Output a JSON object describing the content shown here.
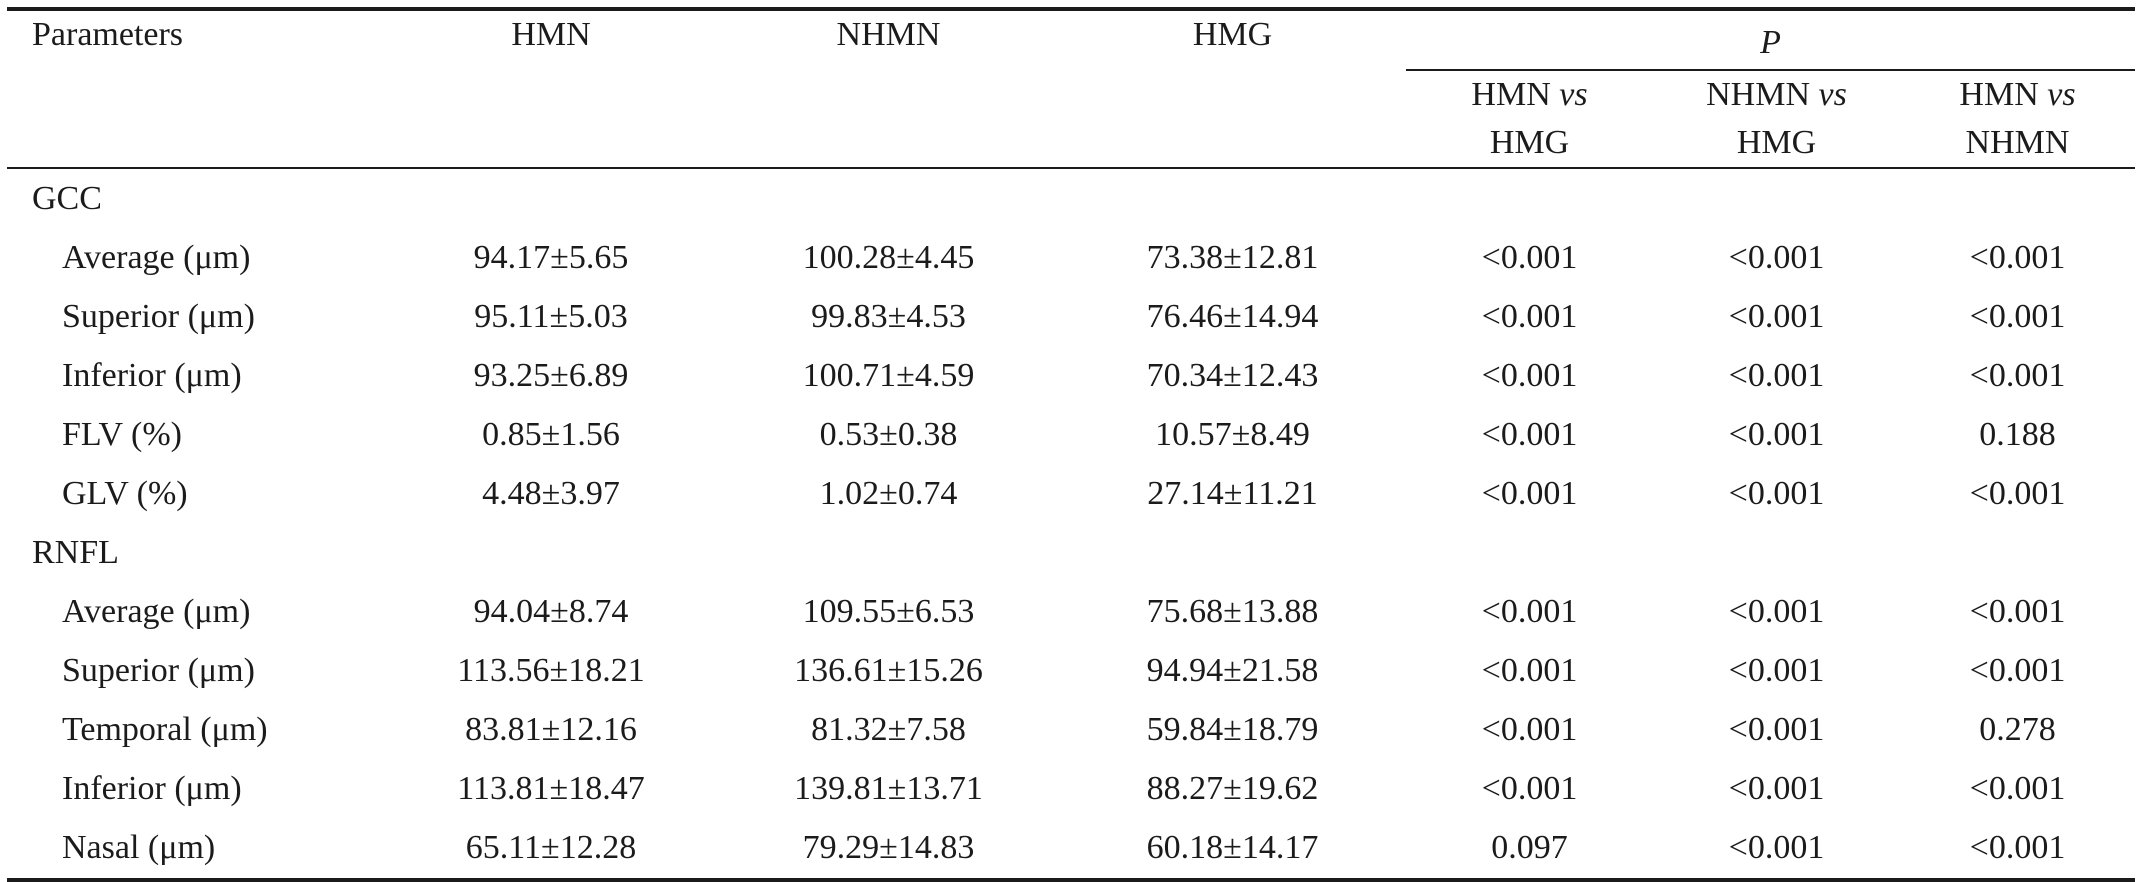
{
  "table": {
    "header": {
      "parameters": "Parameters",
      "group_cols": [
        "HMN",
        "NHMN",
        "HMG"
      ],
      "p_label": "P",
      "p_cols": [
        {
          "line1": "HMN",
          "vs": "vs",
          "line2": "HMG"
        },
        {
          "line1": "NHMN",
          "vs": "vs",
          "line2": "HMG"
        },
        {
          "line1": "HMN",
          "vs": "vs",
          "line2": "NHMN"
        }
      ]
    },
    "sections": [
      {
        "title": "GCC",
        "rows": [
          {
            "param": "Average (μm)",
            "values": [
              "94.17±5.65",
              "100.28±4.45",
              "73.38±12.81",
              "<0.001",
              "<0.001",
              "<0.001"
            ]
          },
          {
            "param": "Superior (μm)",
            "values": [
              "95.11±5.03",
              "99.83±4.53",
              "76.46±14.94",
              "<0.001",
              "<0.001",
              "<0.001"
            ]
          },
          {
            "param": "Inferior (μm)",
            "values": [
              "93.25±6.89",
              "100.71±4.59",
              "70.34±12.43",
              "<0.001",
              "<0.001",
              "<0.001"
            ]
          },
          {
            "param": "FLV (%)",
            "values": [
              "0.85±1.56",
              "0.53±0.38",
              "10.57±8.49",
              "<0.001",
              "<0.001",
              "0.188"
            ]
          },
          {
            "param": "GLV (%)",
            "values": [
              "4.48±3.97",
              "1.02±0.74",
              "27.14±11.21",
              "<0.001",
              "<0.001",
              "<0.001"
            ]
          }
        ]
      },
      {
        "title": "RNFL",
        "rows": [
          {
            "param": "Average (μm)",
            "values": [
              "94.04±8.74",
              "109.55±6.53",
              "75.68±13.88",
              "<0.001",
              "<0.001",
              "<0.001"
            ]
          },
          {
            "param": "Superior (μm)",
            "values": [
              "113.56±18.21",
              "136.61±15.26",
              "94.94±21.58",
              "<0.001",
              "<0.001",
              "<0.001"
            ]
          },
          {
            "param": "Temporal (μm)",
            "values": [
              "83.81±12.16",
              "81.32±7.58",
              "59.84±18.79",
              "<0.001",
              "<0.001",
              "0.278"
            ]
          },
          {
            "param": "Inferior (μm)",
            "values": [
              "113.81±18.47",
              "139.81±13.71",
              "88.27±19.62",
              "<0.001",
              "<0.001",
              "<0.001"
            ]
          },
          {
            "param": "Nasal (μm)",
            "values": [
              "65.11±12.28",
              "79.29±14.83",
              "60.18±14.17",
              "0.097",
              "<0.001",
              "<0.001"
            ]
          }
        ]
      }
    ]
  }
}
